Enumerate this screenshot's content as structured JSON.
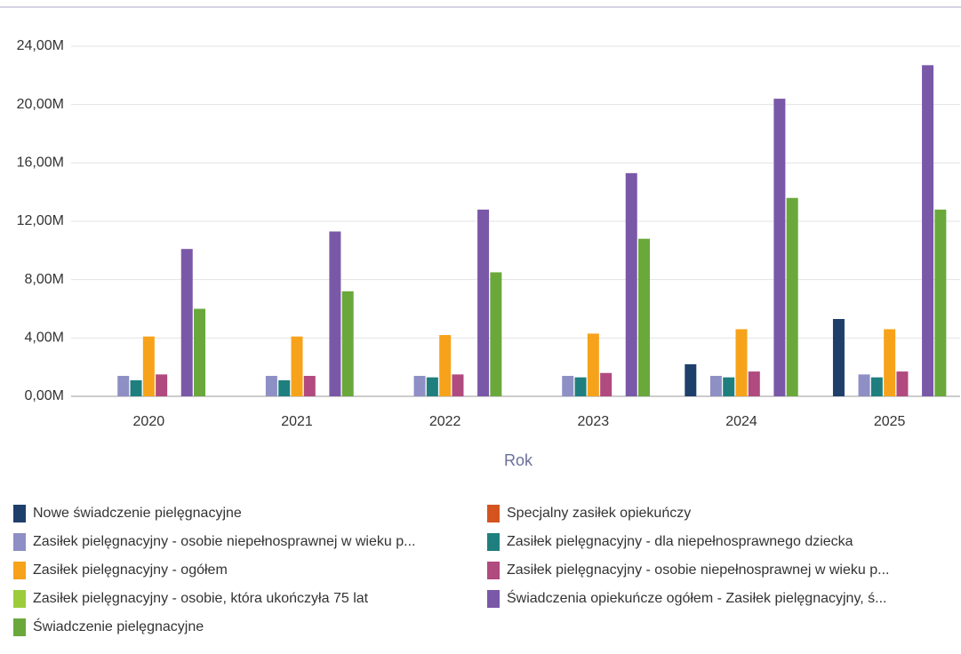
{
  "chart_data": {
    "type": "bar",
    "x_label": "Rok",
    "categories": [
      "2020",
      "2021",
      "2022",
      "2023",
      "2024",
      "2025"
    ],
    "series": [
      {
        "name": "Nowe świadczenie pielęgnacyjne",
        "color": "#1f3f6b",
        "values": [
          0,
          0,
          0,
          0,
          2200000,
          5300000
        ]
      },
      {
        "name": "Specjalny zasiłek opiekuńczy",
        "color": "#d4541f",
        "values": [
          0,
          0,
          0,
          0,
          0,
          0
        ]
      },
      {
        "name": "Zasiłek pielęgnacyjny -  osobie niepełnosprawnej w wieku p...",
        "color": "#8e8fc4",
        "values": [
          1400000,
          1400000,
          1400000,
          1400000,
          1400000,
          1500000
        ]
      },
      {
        "name": "Zasiłek pielęgnacyjny - dla niepełnosprawnego dziecka",
        "color": "#1f7f7f",
        "values": [
          1100000,
          1100000,
          1300000,
          1300000,
          1300000,
          1300000
        ]
      },
      {
        "name": "Zasiłek pielęgnacyjny - ogółem",
        "color": "#f7a21b",
        "values": [
          4100000,
          4100000,
          4200000,
          4300000,
          4600000,
          4600000
        ]
      },
      {
        "name": "Zasiłek pielęgnacyjny - osobie niepełnosprawnej w wieku p...",
        "color": "#b04a7f",
        "values": [
          1500000,
          1400000,
          1500000,
          1600000,
          1700000,
          1700000
        ]
      },
      {
        "name": "Zasiłek pielęgnacyjny - osobie, która ukończyła 75 lat",
        "color": "#9ccc3c",
        "values": [
          0,
          0,
          0,
          0,
          0,
          0
        ]
      },
      {
        "name": "Świadczenia opiekuńcze ogółem - Zasiłek pielęgnacyjny, ś...",
        "color": "#7a58a8",
        "values": [
          10100000,
          11300000,
          12800000,
          15300000,
          20400000,
          22700000
        ]
      },
      {
        "name": "Świadczenie pielęgnacyjne",
        "color": "#6aa83c",
        "values": [
          6000000,
          7200000,
          8500000,
          10800000,
          13600000,
          12800000
        ]
      }
    ],
    "ylim": [
      0,
      24000000
    ],
    "yticks": [
      {
        "value": 0,
        "label": "0,00M"
      },
      {
        "value": 4000000,
        "label": "4,00M"
      },
      {
        "value": 8000000,
        "label": "8,00M"
      },
      {
        "value": 12000000,
        "label": "12,00M"
      },
      {
        "value": 16000000,
        "label": "16,00M"
      },
      {
        "value": 20000000,
        "label": "20,00M"
      },
      {
        "value": 24000000,
        "label": "24,00M"
      }
    ],
    "grid": true
  }
}
